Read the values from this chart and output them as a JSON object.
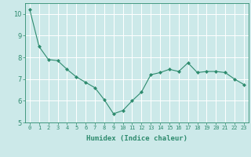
{
  "x": [
    0,
    1,
    2,
    3,
    4,
    5,
    6,
    7,
    8,
    9,
    10,
    11,
    12,
    13,
    14,
    15,
    16,
    17,
    18,
    19,
    20,
    21,
    22,
    23
  ],
  "y": [
    10.2,
    8.5,
    7.9,
    7.85,
    7.45,
    7.1,
    6.85,
    6.6,
    6.05,
    5.4,
    5.55,
    6.0,
    6.4,
    7.2,
    7.3,
    7.45,
    7.35,
    7.75,
    7.3,
    7.35,
    7.35,
    7.3,
    7.0,
    6.75
  ],
  "line_color": "#2e8b6e",
  "marker": "D",
  "marker_size": 2.0,
  "bg_color": "#cce9e9",
  "grid_color": "#ffffff",
  "xlabel": "Humidex (Indice chaleur)",
  "ylim": [
    5,
    10.5
  ],
  "xlim": [
    -0.5,
    23.5
  ],
  "yticks": [
    5,
    6,
    7,
    8,
    9,
    10
  ],
  "xticks": [
    0,
    1,
    2,
    3,
    4,
    5,
    6,
    7,
    8,
    9,
    10,
    11,
    12,
    13,
    14,
    15,
    16,
    17,
    18,
    19,
    20,
    21,
    22,
    23
  ],
  "tick_color": "#2e8b6e",
  "label_color": "#2e8b6e",
  "xlabel_fontsize": 6.5,
  "xtick_fontsize": 5.0,
  "ytick_fontsize": 6.0
}
